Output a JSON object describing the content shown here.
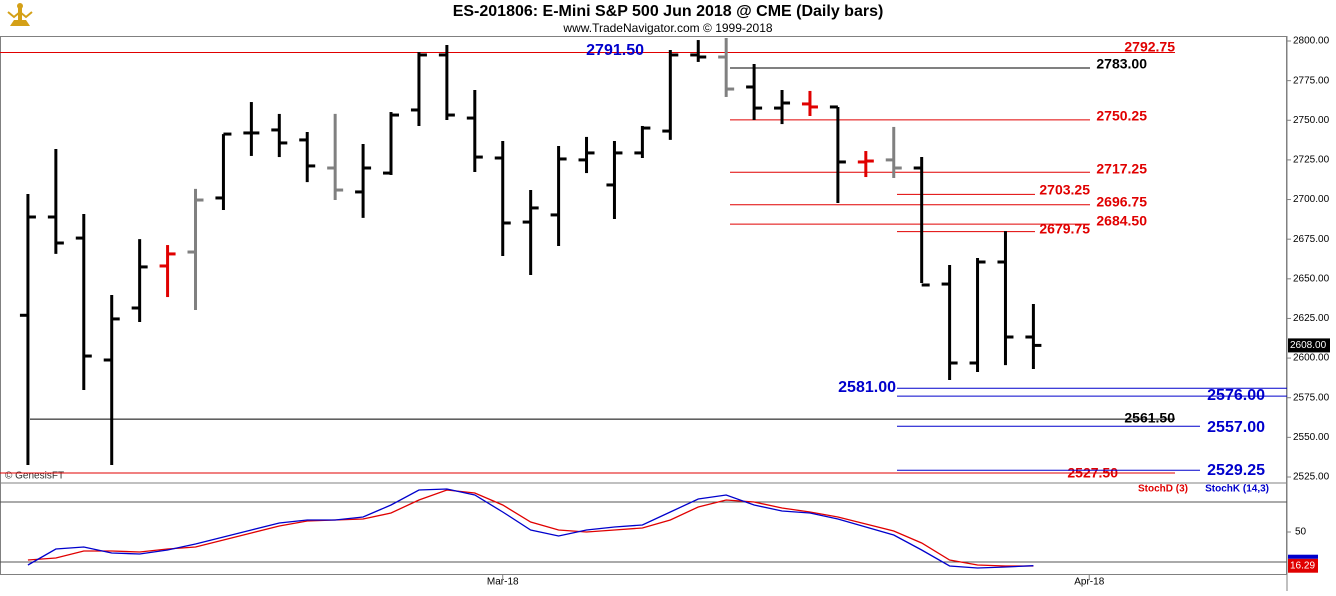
{
  "header": {
    "title": "ES-201806:  E-Mini S&P 500 Jun 2018 @ CME  (Daily bars)",
    "subtitle": "www.TradeNavigator.com © 1999-2018"
  },
  "watermark": "© GenesisFT",
  "chart_data": [
    {
      "type": "ohlc",
      "open": [
        2627,
        2689,
        2675.7,
        2598.8,
        2631.6,
        2658.1,
        2666.9,
        2701,
        2742,
        2743.9,
        2737.6,
        2719.9,
        2704.8,
        2716.7,
        2756.5,
        2791.2,
        2751.4,
        2726.2,
        2685.8,
        2690.3,
        2725,
        2709.2,
        2729.4,
        2743.2,
        2791.2,
        2789.9,
        2771,
        2757.7,
        2760.3,
        2758.4,
        2723.7,
        2725,
        2719.9,
        2646.7,
        2596.9,
        2660.6,
        2613.3
      ],
      "high": [
        2703.5,
        2731.9,
        2690.9,
        2639.8,
        2675,
        2671.3,
        2706.7,
        2741.3,
        2761.5,
        2754,
        2742.6,
        2754,
        2735,
        2755.2,
        2793,
        2797.5,
        2769.1,
        2736.9,
        2706,
        2733.8,
        2739.5,
        2736.9,
        2746.4,
        2794.3,
        2800.6,
        2801.9,
        2785.5,
        2769.1,
        2768.5,
        2758.4,
        2730.6,
        2745.8,
        2726.8,
        2658.7,
        2663.1,
        2680.1,
        2634.1
      ],
      "low": [
        2532.6,
        2665.7,
        2579.9,
        2532.6,
        2622.8,
        2638.5,
        2630.3,
        2693.4,
        2727.5,
        2726.8,
        2711,
        2699.7,
        2688.4,
        2715.5,
        2746.4,
        2750.2,
        2717.4,
        2664.4,
        2652.4,
        2670.7,
        2716.7,
        2687.7,
        2726.2,
        2737.6,
        2786.8,
        2764.7,
        2750.2,
        2747.6,
        2752.7,
        2697.8,
        2714.2,
        2713.6,
        2647.4,
        2586.2,
        2591.2,
        2595.6,
        2593.1
      ],
      "close": [
        2689,
        2672.6,
        2601.3,
        2624.7,
        2657.5,
        2665.7,
        2699.7,
        2741.3,
        2742,
        2735.7,
        2721.2,
        2706,
        2719.9,
        2753.3,
        2791.2,
        2753.3,
        2726.8,
        2685.2,
        2694.7,
        2725.6,
        2729.4,
        2729.4,
        2745.1,
        2791.2,
        2789.9,
        2769.7,
        2757.7,
        2760.9,
        2758.4,
        2723.7,
        2724.3,
        2719.9,
        2646.1,
        2596.9,
        2660.6,
        2613.3,
        2608
      ],
      "bar_colors": [
        "#000000",
        "#000000",
        "#000000",
        "#000000",
        "#000000",
        "#e00000",
        "#808080",
        "#000000",
        "#000000",
        "#000000",
        "#000000",
        "#808080",
        "#000000",
        "#000000",
        "#000000",
        "#000000",
        "#000000",
        "#000000",
        "#000000",
        "#000000",
        "#000000",
        "#000000",
        "#000000",
        "#000000",
        "#000000",
        "#808080",
        "#000000",
        "#000000",
        "#e00000",
        "#000000",
        "#e00000",
        "#808080",
        "#000000",
        "#000000",
        "#000000",
        "#000000",
        "#000000"
      ],
      "xlim": [
        -1,
        45.08
      ],
      "xticks": [
        {
          "value": 17,
          "label": "Mar-18"
        },
        {
          "value": 38,
          "label": "Apr-18"
        }
      ],
      "ylim": [
        2800,
        2525
      ],
      "yticks": [
        {
          "value": 2800,
          "label": "2800.00"
        },
        {
          "value": 2775,
          "label": "2775.00"
        },
        {
          "value": 2750,
          "label": "2750.00"
        },
        {
          "value": 2725,
          "label": "2725.00"
        },
        {
          "value": 2700,
          "label": "2700.00"
        },
        {
          "value": 2675,
          "label": "2675.00"
        },
        {
          "value": 2650,
          "label": "2650.00"
        },
        {
          "value": 2625,
          "label": "2625.00"
        },
        {
          "value": 2600,
          "label": "2600.00"
        },
        {
          "value": 2575,
          "label": "2575.00"
        },
        {
          "value": 2550,
          "label": "2550.00"
        },
        {
          "value": 2525,
          "label": "2525.00"
        }
      ],
      "last": {
        "value": 2608,
        "label": "2608.00"
      },
      "levels": [
        {
          "value": 2792.75,
          "color": "#e00000"
        },
        {
          "value": 2791.5,
          "label": "2791.50",
          "color": "#0000cc"
        },
        {
          "value": 2783,
          "label": "2783.00",
          "color": "#000000"
        },
        {
          "value": 2750.25,
          "color": "#e00000"
        },
        {
          "value": 2717.25,
          "color": "#e00000"
        },
        {
          "value": 2703.25,
          "color": "#e00000"
        },
        {
          "value": 2696.75,
          "color": "#e00000"
        },
        {
          "value": 2684.5,
          "label": "2684.50",
          "color": "#e00000"
        },
        {
          "value": 2679.75,
          "color": "#e00000"
        },
        {
          "value": 2581,
          "label": "2581.00",
          "color": "#0000cc"
        },
        {
          "value": 2576,
          "label": "2576.00",
          "color": "#0000cc"
        },
        {
          "value": 2561.5,
          "label": "2561.50",
          "color": "#000000"
        },
        {
          "value": 2557,
          "label": "2557.00",
          "color": "#0000cc"
        },
        {
          "value": 2527.5,
          "label": "2527.50",
          "color": "#e00000"
        },
        {
          "value": 2529.25,
          "color": "#0000cc"
        }
      ]
    },
    {
      "type": "line",
      "ylim": [
        7,
        100
      ],
      "yticks": [
        50
      ],
      "guides": [
        20,
        80
      ],
      "series": [
        {
          "name": "StochD (3)",
          "color": "#e00000",
          "values": [
            22,
            24,
            31,
            31,
            30,
            33,
            35,
            42,
            49,
            56,
            61,
            62,
            63,
            69,
            82,
            92,
            89,
            77,
            60,
            52,
            50,
            52,
            54,
            62,
            75,
            82,
            80,
            74,
            70,
            65,
            58,
            51,
            39,
            22,
            17,
            16,
            16
          ]
        },
        {
          "name": "StochK (14,3)",
          "color": "#0000cc",
          "values": [
            17,
            33,
            35,
            29,
            28,
            32,
            38,
            45,
            52,
            59,
            62,
            62,
            65,
            77,
            92,
            93,
            87,
            70,
            52,
            46,
            52,
            55,
            57,
            70,
            83,
            87,
            77,
            71,
            69,
            63,
            55,
            47,
            32,
            16,
            14,
            15,
            16.29
          ]
        }
      ]
    }
  ]
}
